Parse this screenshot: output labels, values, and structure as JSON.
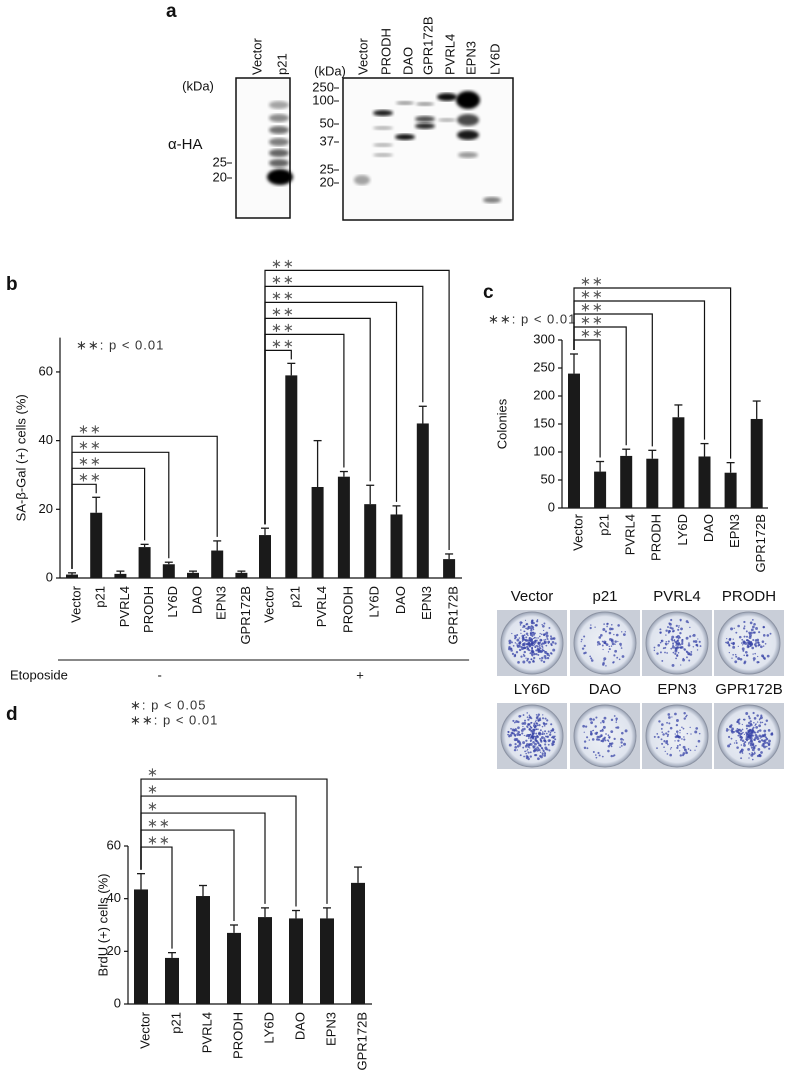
{
  "blot": {
    "letter": "a",
    "antibody": "α-HA",
    "left": {
      "unit": "(kDa)",
      "lanes": [
        "Vector",
        "p21"
      ],
      "markers": [
        25,
        20
      ]
    },
    "right": {
      "unit": "(kDa)",
      "lanes": [
        "Vector",
        "PRODH",
        "DAO",
        "GPR172B",
        "PVRL4",
        "EPN3",
        "LY6D"
      ],
      "markers": [
        250,
        100,
        50,
        37,
        25,
        20
      ]
    }
  },
  "plates": {
    "labels": [
      "Vector",
      "p21",
      "PVRL4",
      "PRODH",
      "LY6D",
      "DAO",
      "EPN3",
      "GPR172B"
    ]
  },
  "chart_data": [
    {
      "type": "bar",
      "letter": "b",
      "ylabel": "SA-β-Gal (+) cells (%)",
      "annotations": [
        "∗∗: p < 0.01"
      ],
      "ylim": [
        0,
        70
      ],
      "yticks": [
        0,
        20,
        40,
        60
      ],
      "color": "#1a1a1a",
      "x_group_title": "Etoposide",
      "groups": [
        {
          "label": "-",
          "categories": [
            "Vector",
            "p21",
            "PVRL4",
            "PRODH",
            "LY6D",
            "DAO",
            "EPN3",
            "GPR172B"
          ],
          "values": [
            1,
            19,
            1.2,
            9,
            4,
            1.5,
            8,
            1.5
          ],
          "errors": [
            0.5,
            4.5,
            0.8,
            0.8,
            0.6,
            0.5,
            2.8,
            0.5
          ],
          "comparisons": [
            {
              "to": "p21",
              "label": "∗∗"
            },
            {
              "to": "PRODH",
              "label": "∗∗"
            },
            {
              "to": "LY6D",
              "label": "∗∗"
            },
            {
              "to": "EPN3",
              "label": "∗∗"
            }
          ]
        },
        {
          "label": "+",
          "categories": [
            "Vector",
            "p21",
            "PVRL4",
            "PRODH",
            "LY6D",
            "DAO",
            "EPN3",
            "GPR172B"
          ],
          "values": [
            12.5,
            59,
            26.5,
            29.5,
            21.5,
            18.5,
            45,
            5.5
          ],
          "errors": [
            2,
            3.5,
            13.5,
            1.5,
            5.5,
            2.5,
            5,
            1.5
          ],
          "comparisons": [
            {
              "to": "p21",
              "label": "∗∗"
            },
            {
              "to": "PRODH",
              "label": "∗∗"
            },
            {
              "to": "LY6D",
              "label": "∗∗"
            },
            {
              "to": "DAO",
              "label": "∗∗"
            },
            {
              "to": "EPN3",
              "label": "∗∗"
            },
            {
              "to": "GPR172B",
              "label": "∗∗"
            }
          ]
        }
      ]
    },
    {
      "type": "bar",
      "letter": "c",
      "ylabel": "Colonies",
      "annotations": [
        "∗∗: p < 0.01"
      ],
      "ylim": [
        0,
        300
      ],
      "yticks": [
        0,
        50,
        100,
        150,
        200,
        250,
        300
      ],
      "color": "#1a1a1a",
      "groups": [
        {
          "categories": [
            "Vector",
            "p21",
            "PVRL4",
            "PRODH",
            "LY6D",
            "DAO",
            "EPN3",
            "GPR172B"
          ],
          "values": [
            240,
            65,
            93,
            88,
            162,
            92,
            63,
            159
          ],
          "errors": [
            35,
            18,
            12,
            15,
            22,
            23,
            18,
            32
          ],
          "comparisons": [
            {
              "to": "p21",
              "label": "∗∗"
            },
            {
              "to": "PVRL4",
              "label": "∗∗"
            },
            {
              "to": "PRODH",
              "label": "∗∗"
            },
            {
              "to": "DAO",
              "label": "∗∗"
            },
            {
              "to": "EPN3",
              "label": "∗∗"
            }
          ]
        }
      ]
    },
    {
      "type": "bar",
      "letter": "d",
      "ylabel": "BrdU (+) cells (%)",
      "annotations": [
        "∗: p < 0.05",
        "∗∗: p < 0.01"
      ],
      "ylim": [
        0,
        60
      ],
      "yticks": [
        0,
        20,
        40,
        60
      ],
      "color": "#1a1a1a",
      "groups": [
        {
          "categories": [
            "Vector",
            "p21",
            "PVRL4",
            "PRODH",
            "LY6D",
            "DAO",
            "EPN3",
            "GPR172B"
          ],
          "values": [
            43.5,
            17.5,
            41,
            27,
            33,
            32.5,
            32.5,
            46
          ],
          "errors": [
            6,
            2,
            4,
            3,
            3.5,
            3,
            4,
            6
          ],
          "comparisons": [
            {
              "to": "p21",
              "label": "∗∗"
            },
            {
              "to": "PRODH",
              "label": "∗∗"
            },
            {
              "to": "LY6D",
              "label": "∗"
            },
            {
              "to": "DAO",
              "label": "∗"
            },
            {
              "to": "EPN3",
              "label": "∗"
            }
          ]
        }
      ]
    }
  ]
}
